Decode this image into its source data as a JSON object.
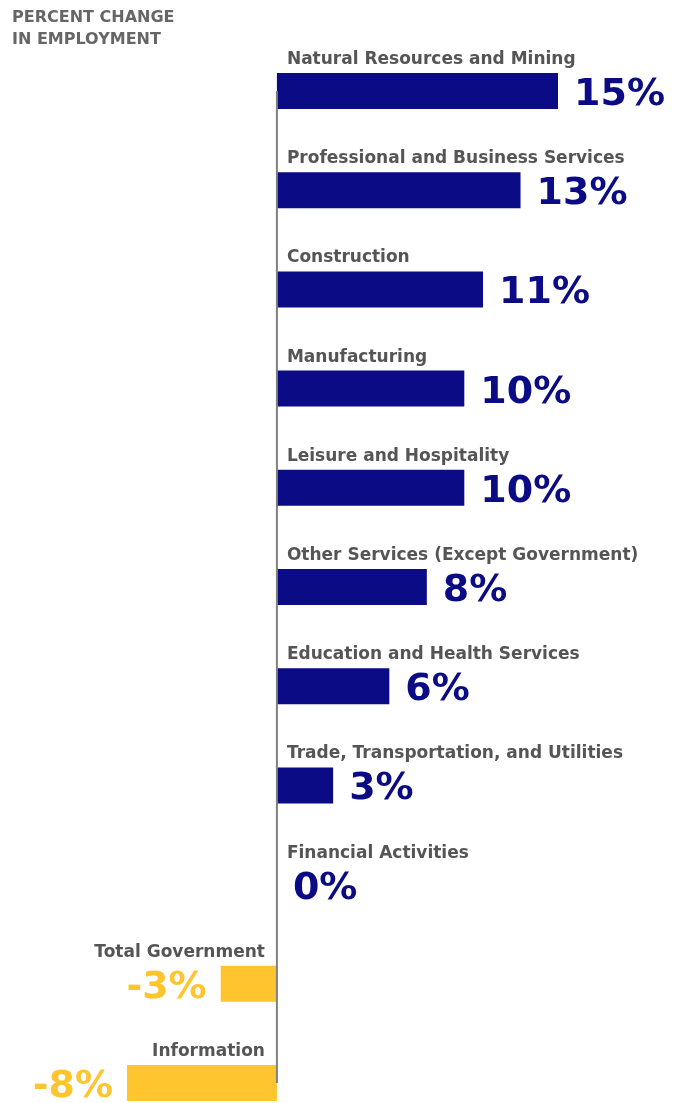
{
  "chart_data": {
    "type": "bar",
    "orientation": "horizontal",
    "title": "PERCENT CHANGE IN EMPLOYMENT",
    "categories": [
      "Natural Resources and Mining",
      "Professional and Business Services",
      "Construction",
      "Manufacturing",
      "Leisure and Hospitality",
      "Other Services (Except Government)",
      "Education and Health Services",
      "Trade, Transportation, and Utilities",
      "Financial Activities",
      "Total Government",
      "Information"
    ],
    "values": [
      15,
      13,
      11,
      10,
      10,
      8,
      6,
      3,
      0,
      -3,
      -8
    ],
    "colors": [
      "#0b0b85",
      "#0b0b85",
      "#0b0b85",
      "#0b0b85",
      "#0b0b85",
      "#0b0b85",
      "#0b0b85",
      "#0b0b85",
      "#0b0b85",
      "#ffc52f",
      "#ffc52f"
    ],
    "value_labels": [
      "15%",
      "13%",
      "11%",
      "10%",
      "10%",
      "8%",
      "6%",
      "3%",
      "0%",
      "-3%",
      "-8%"
    ]
  }
}
